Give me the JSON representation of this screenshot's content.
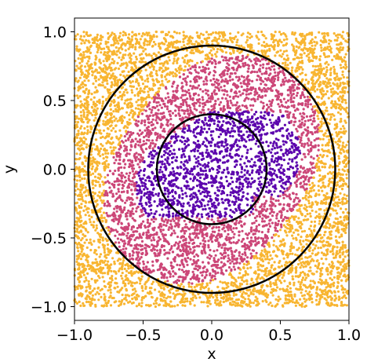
{
  "chart_data": {
    "type": "scatter",
    "title": "",
    "xlabel": "x",
    "ylabel": "y",
    "xlim": [
      -1.0,
      1.0
    ],
    "ylim": [
      -1.1,
      1.1
    ],
    "x_ticks": [
      -1.0,
      -0.5,
      0.0,
      0.5,
      1.0
    ],
    "x_tick_labels": [
      "−1.0",
      "−0.5",
      "0.0",
      "0.5",
      "1.0"
    ],
    "y_ticks": [
      -1.0,
      -0.5,
      0.0,
      0.5,
      1.0
    ],
    "y_tick_labels": [
      "−1.0",
      "−0.5",
      "0.0",
      "0.5",
      "1.0"
    ],
    "grid": false,
    "legend": "none",
    "series": [
      {
        "color": "#5c04ad",
        "sample": [
          [
            0.12,
            0.08
          ],
          [
            -0.2,
            0.25
          ],
          [
            0.33,
            0.31
          ],
          [
            -0.45,
            -0.12
          ],
          [
            0.05,
            -0.3
          ],
          [
            0.52,
            0.18
          ],
          [
            -0.1,
            -0.05
          ]
        ]
      },
      {
        "color": "#cc4778",
        "sample": [
          [
            -0.6,
            0.55
          ],
          [
            0.45,
            -0.6
          ],
          [
            -0.7,
            -0.3
          ],
          [
            0.6,
            -0.2
          ],
          [
            -0.2,
            0.7
          ],
          [
            -0.4,
            -0.65
          ],
          [
            0.1,
            0.6
          ]
        ]
      },
      {
        "color": "#f8b531",
        "sample": [
          [
            0.92,
            0.9
          ],
          [
            -0.95,
            0.95
          ],
          [
            -0.9,
            -0.92
          ],
          [
            0.95,
            -0.95
          ],
          [
            0.0,
            0.97
          ],
          [
            -0.98,
            0.05
          ],
          [
            0.97,
            0.1
          ],
          [
            0.05,
            -0.97
          ]
        ]
      }
    ],
    "circles": [
      {
        "center": [
          0.0,
          0.0
        ],
        "radius": 0.4,
        "color": "#000000"
      },
      {
        "center": [
          0.0,
          0.0
        ],
        "radius": 0.9,
        "color": "#000000"
      }
    ]
  }
}
